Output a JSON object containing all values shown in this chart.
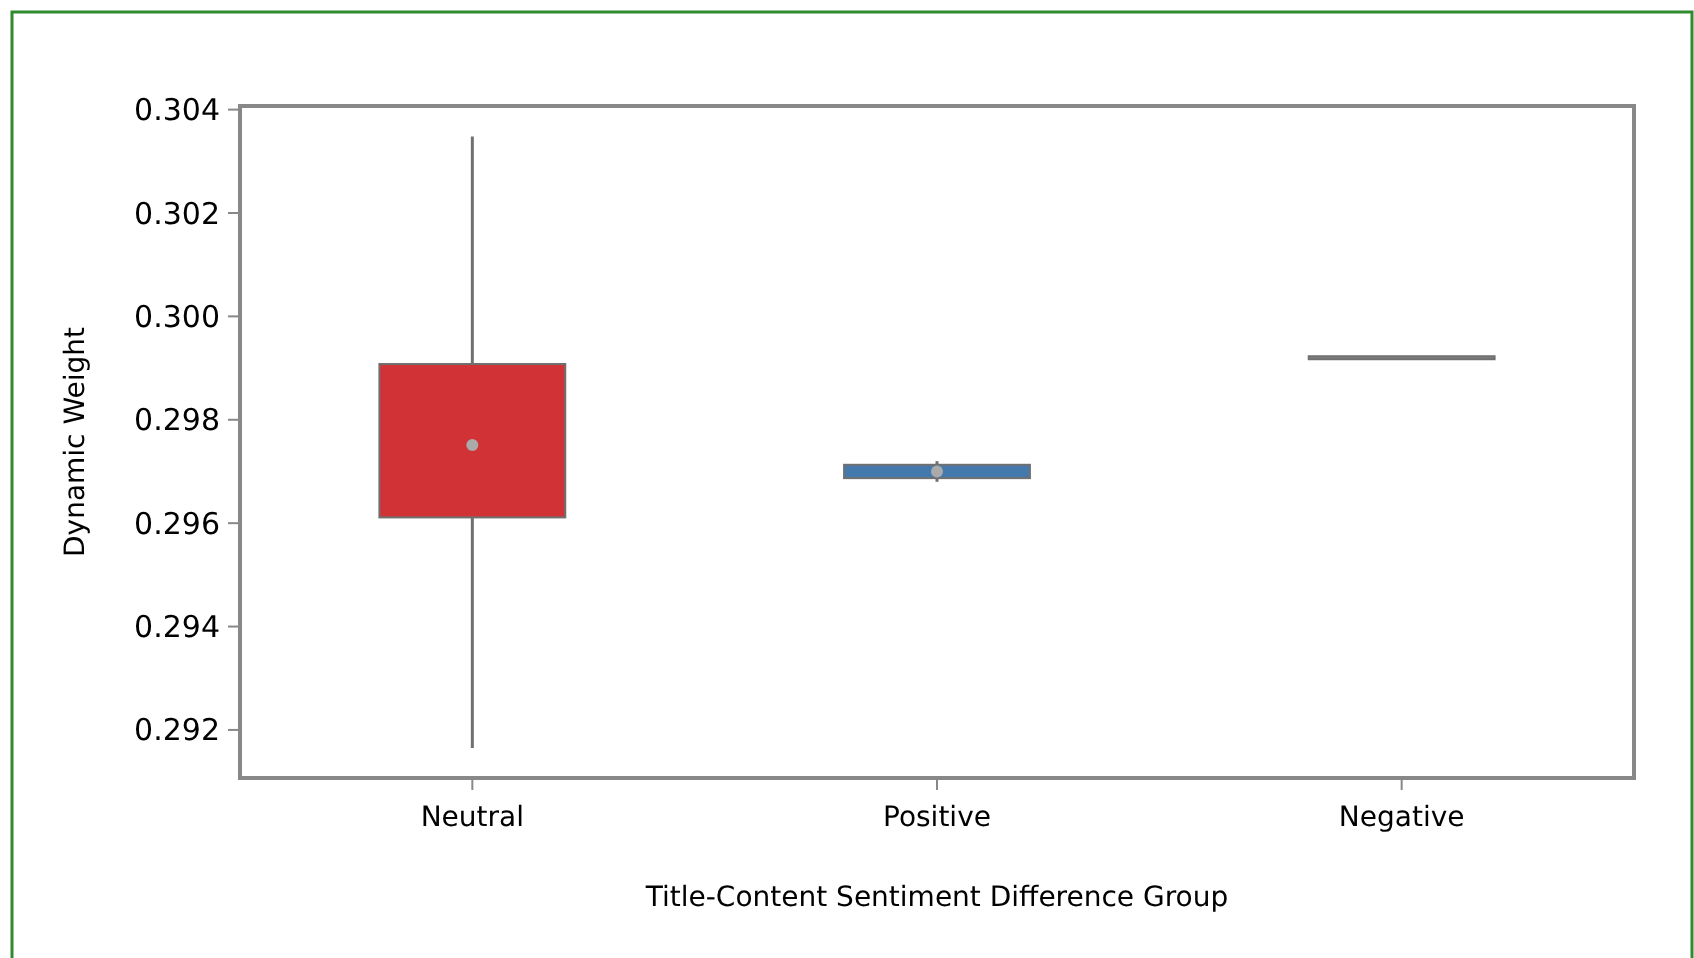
{
  "chart_data": {
    "type": "box",
    "xlabel": "Title-Content Sentiment Difference Group",
    "ylabel": "Dynamic Weight",
    "categories": [
      "Neutral",
      "Positive",
      "Negative"
    ],
    "colors": [
      "#d03236",
      "#4479ad",
      "#808080"
    ],
    "boxes": [
      {
        "low": 0.29165,
        "q1": 0.29614,
        "median": 0.29751,
        "q3": 0.29905,
        "high": 0.30348
      },
      {
        "low": 0.2968,
        "q1": 0.2969,
        "median": 0.297,
        "q3": 0.2971,
        "high": 0.2972
      },
      {
        "low": 0.2992,
        "q1": 0.2992,
        "median": 0.2992,
        "q3": 0.2992,
        "high": 0.2992
      }
    ],
    "ylim": [
      0.29107,
      0.30407
    ],
    "yticks": [
      0.292,
      0.294,
      0.296,
      0.298,
      {
        "value": 0.3,
        "label": "0.300"
      },
      0.302,
      0.304
    ],
    "grid": false
  }
}
